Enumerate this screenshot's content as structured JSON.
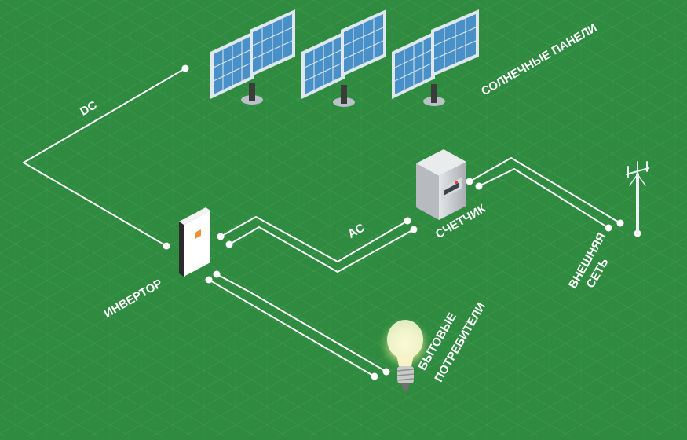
{
  "labels": {
    "dc": "DC",
    "ac": "AC",
    "solar_panels": "СОЛНЕЧНЫЕ ПАНЕЛИ",
    "meter": "СЧЕТЧИК",
    "grid_line1": "ВНЕШНЯЯ",
    "grid_line2": "СЕТЬ",
    "inverter": "ИНВЕРТОР",
    "consumers_line1": "БЫТОВЫЕ",
    "consumers_line2": "ПОТРЕБИТЕЛИ"
  },
  "colors": {
    "background": "#2e8b3f",
    "grid": "#4ea25b",
    "wire": "#ffffff",
    "panel_cell": "#4a90c8",
    "panel_frame": "#dfe8ee",
    "meter_body": "#c9ccd0",
    "bulb_glow": "#fff6a8"
  }
}
